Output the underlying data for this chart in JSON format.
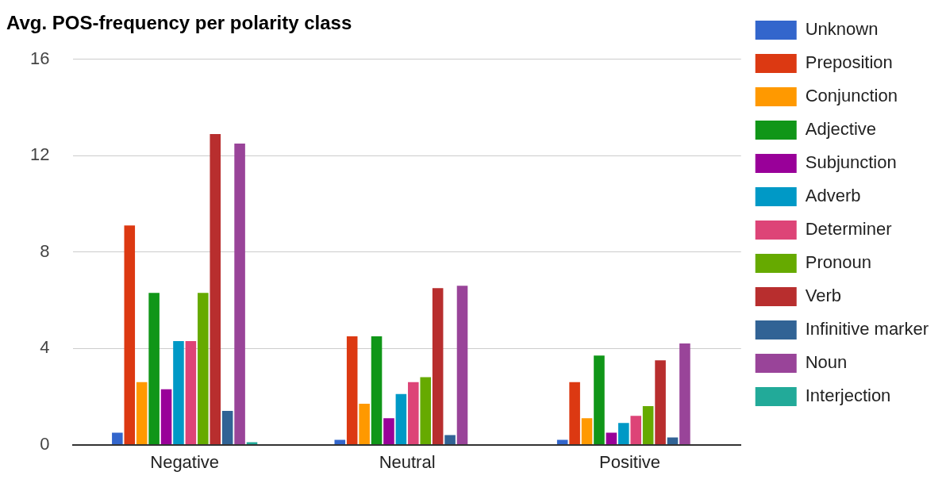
{
  "chart_data": {
    "type": "bar",
    "title": "Avg. POS-frequency per polarity class",
    "categories": [
      "Negative",
      "Neutral",
      "Positive"
    ],
    "ylim": [
      0,
      16
    ],
    "yticks": [
      0,
      4,
      8,
      12,
      16
    ],
    "grid": "y",
    "legend": "right",
    "series": [
      {
        "name": "Unknown",
        "color": "#3366cc",
        "values": [
          0.5,
          0.2,
          0.2
        ]
      },
      {
        "name": "Preposition",
        "color": "#dc3912",
        "values": [
          9.1,
          4.5,
          2.6
        ]
      },
      {
        "name": "Conjunction",
        "color": "#ff9900",
        "values": [
          2.6,
          1.7,
          1.1
        ]
      },
      {
        "name": "Adjective",
        "color": "#109618",
        "values": [
          6.3,
          4.5,
          3.7
        ]
      },
      {
        "name": "Subjunction",
        "color": "#990099",
        "values": [
          2.3,
          1.1,
          0.5
        ]
      },
      {
        "name": "Adverb",
        "color": "#0099c6",
        "values": [
          4.3,
          2.1,
          0.9
        ]
      },
      {
        "name": "Determiner",
        "color": "#dd4477",
        "values": [
          4.3,
          2.6,
          1.2
        ]
      },
      {
        "name": "Pronoun",
        "color": "#66aa00",
        "values": [
          6.3,
          2.8,
          1.6
        ]
      },
      {
        "name": "Verb",
        "color": "#b82e2e",
        "values": [
          12.9,
          6.5,
          3.5
        ]
      },
      {
        "name": "Infinitive marker",
        "color": "#316395",
        "values": [
          1.4,
          0.4,
          0.3
        ]
      },
      {
        "name": "Noun",
        "color": "#994499",
        "values": [
          12.5,
          6.6,
          4.2
        ]
      },
      {
        "name": "Interjection",
        "color": "#22aa99",
        "values": [
          0.1,
          0,
          0
        ]
      }
    ]
  }
}
